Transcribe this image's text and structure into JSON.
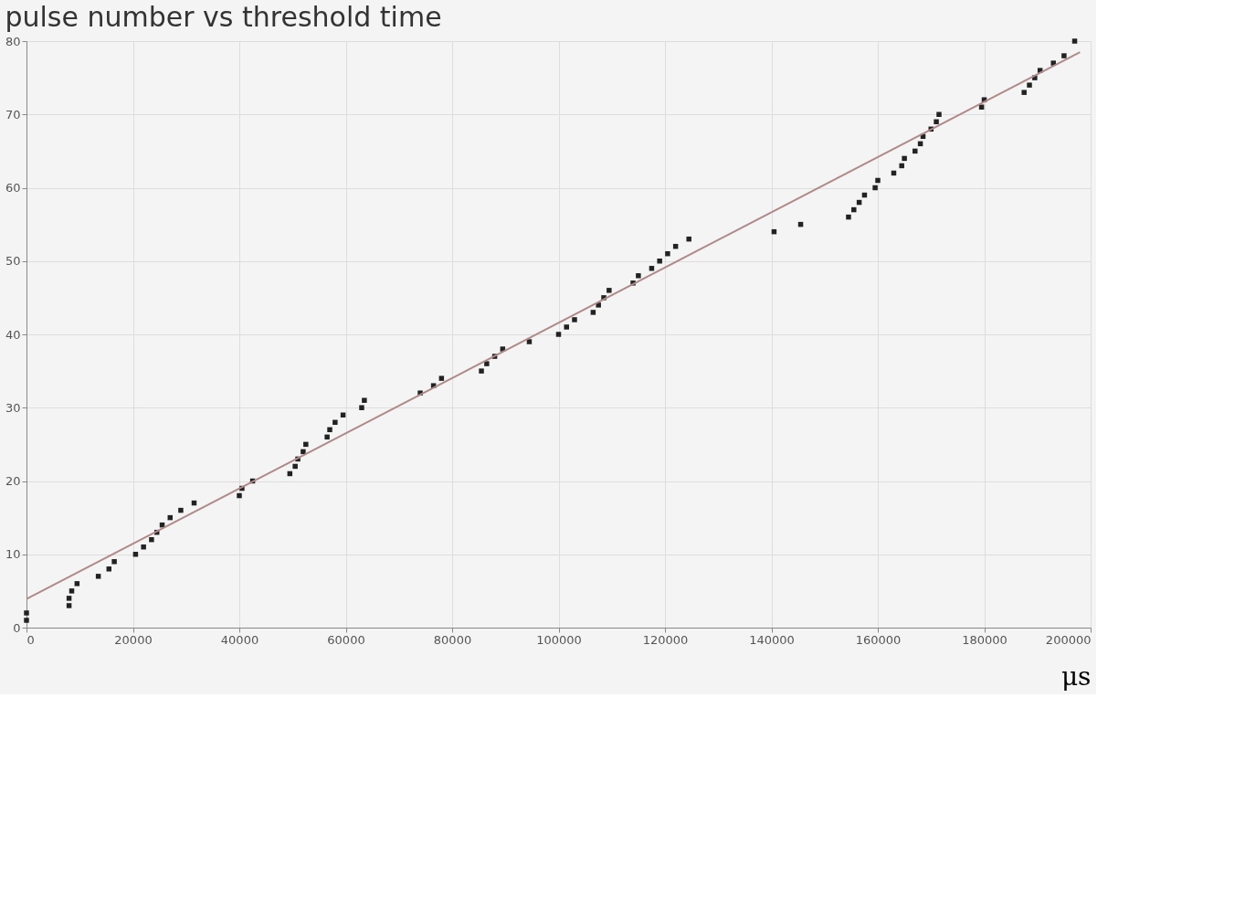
{
  "chart_data": {
    "type": "scatter",
    "title": "pulse number vs threshold time",
    "xlabel": "μs",
    "xlim": [
      0,
      200000
    ],
    "xticks": [
      0,
      20000,
      40000,
      60000,
      80000,
      100000,
      120000,
      140000,
      160000,
      180000,
      200000
    ],
    "ylim": [
      0,
      80
    ],
    "yticks": [
      0,
      10,
      20,
      30,
      40,
      50,
      60,
      70,
      80
    ],
    "grid": true,
    "series": [
      {
        "marker": "square",
        "color": "#222222",
        "x": [
          0,
          0,
          8000,
          8000,
          8500,
          9500,
          13500,
          15500,
          16500,
          20500,
          22000,
          23500,
          24500,
          25500,
          27000,
          29000,
          31500,
          40000,
          40500,
          42500,
          49500,
          50500,
          51000,
          52000,
          52500,
          56500,
          57000,
          58000,
          59500,
          63000,
          63500,
          74000,
          76500,
          78000,
          85500,
          86500,
          88000,
          89500,
          94500,
          100000,
          101500,
          103000,
          106500,
          107500,
          108500,
          109500,
          114000,
          115000,
          117500,
          119000,
          120500,
          122000,
          124500,
          140500,
          145500,
          154500,
          155500,
          156500,
          157500,
          159500,
          160000,
          163000,
          164500,
          165000,
          167000,
          168000,
          168500,
          170000,
          171000,
          171500,
          179500,
          180000,
          187500,
          188500,
          189500,
          190500,
          193000,
          195000,
          197000
        ],
        "values": [
          1,
          2,
          3,
          4,
          5,
          6,
          7,
          8,
          9,
          10,
          11,
          12,
          13,
          14,
          15,
          16,
          17,
          18,
          19,
          20,
          21,
          22,
          23,
          24,
          25,
          26,
          27,
          28,
          29,
          30,
          31,
          32,
          33,
          34,
          35,
          36,
          37,
          38,
          39,
          40,
          41,
          42,
          43,
          44,
          45,
          46,
          47,
          48,
          49,
          50,
          51,
          52,
          53,
          54,
          55,
          56,
          57,
          58,
          59,
          60,
          61,
          62,
          63,
          64,
          65,
          66,
          67,
          68,
          69,
          70,
          71,
          72,
          73,
          74,
          75,
          76,
          77,
          78,
          80
        ]
      },
      {
        "type": "line",
        "color": "#b08a8a",
        "x": [
          0,
          198000
        ],
        "values": [
          3.9,
          78.5
        ]
      }
    ]
  }
}
